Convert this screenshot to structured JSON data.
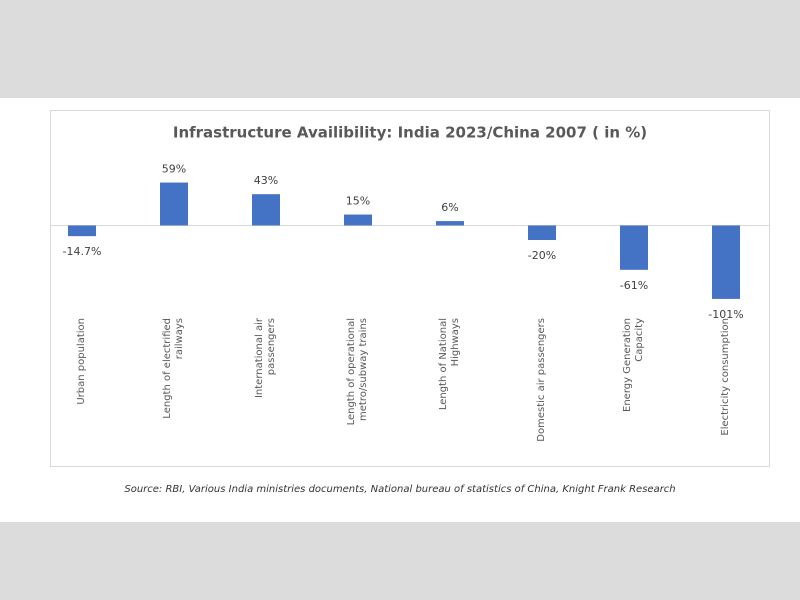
{
  "chart_data": {
    "type": "bar",
    "title": "Infrastructure Availibility: India 2023/China 2007 ( in %)",
    "categories": [
      "Urban population",
      "Length of electrified railways",
      "International air passengers",
      "Length of operational metro/subway trains",
      "Length of National Highways",
      "Domestic air passengers",
      "Energy Generation Capacity",
      "Electricity consumption"
    ],
    "values": [
      -14.7,
      59,
      43,
      15,
      6,
      -20,
      -61,
      -101
    ],
    "value_labels": [
      "-14.7%",
      "59%",
      "43%",
      "15%",
      "6%",
      "-20%",
      "-61%",
      "-101%"
    ],
    "color": "#4472c4",
    "ylim": [
      -130,
      90
    ],
    "source": "Source: RBI, Various India ministries documents, National bureau of statistics of China, Knight Frank Research"
  }
}
